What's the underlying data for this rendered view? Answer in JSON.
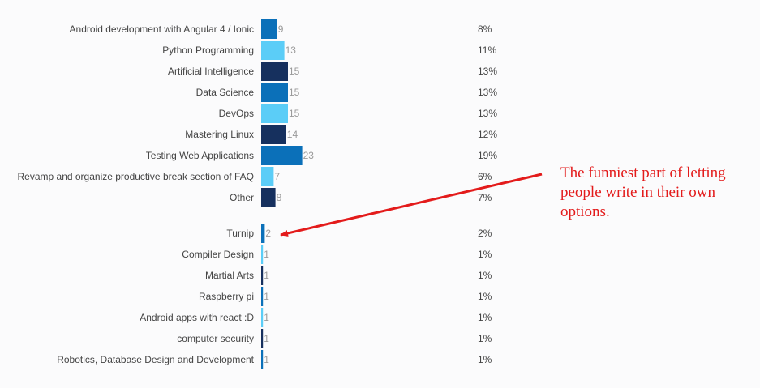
{
  "chart_data": {
    "type": "bar",
    "orientation": "horizontal",
    "palette": [
      "#0b70b9",
      "#5bcdf7",
      "#16305e"
    ],
    "groups": [
      {
        "rows": [
          {
            "category": "Android development with Angular 4 / Ionic",
            "value": 9,
            "percent": "8%"
          },
          {
            "category": "Python Programming",
            "value": 13,
            "percent": "11%"
          },
          {
            "category": "Artificial Intelligence",
            "value": 15,
            "percent": "13%"
          },
          {
            "category": "Data Science",
            "value": 15,
            "percent": "13%"
          },
          {
            "category": "DevOps",
            "value": 15,
            "percent": "13%"
          },
          {
            "category": "Mastering Linux",
            "value": 14,
            "percent": "12%"
          },
          {
            "category": "Testing Web Applications",
            "value": 23,
            "percent": "19%"
          },
          {
            "category": "Revamp and organize productive break section of FAQ",
            "value": 7,
            "percent": "6%"
          },
          {
            "category": "Other",
            "value": 8,
            "percent": "7%"
          }
        ]
      },
      {
        "rows": [
          {
            "category": "Turnip",
            "value": 2,
            "percent": "2%"
          },
          {
            "category": "Compiler Design",
            "value": 1,
            "percent": "1%"
          },
          {
            "category": "Martial Arts",
            "value": 1,
            "percent": "1%"
          },
          {
            "category": "Raspberry pi",
            "value": 1,
            "percent": "1%"
          },
          {
            "category": "Android apps with react :D",
            "value": 1,
            "percent": "1%"
          },
          {
            "category": "computer security",
            "value": 1,
            "percent": "1%"
          },
          {
            "category": "Robotics, Database Design and Development",
            "value": 1,
            "percent": "1%"
          }
        ]
      }
    ]
  },
  "annotation": {
    "text": "The funniest part of letting people write in their own options.",
    "color": "#e31b1b",
    "arrow_target": "Turnip"
  }
}
